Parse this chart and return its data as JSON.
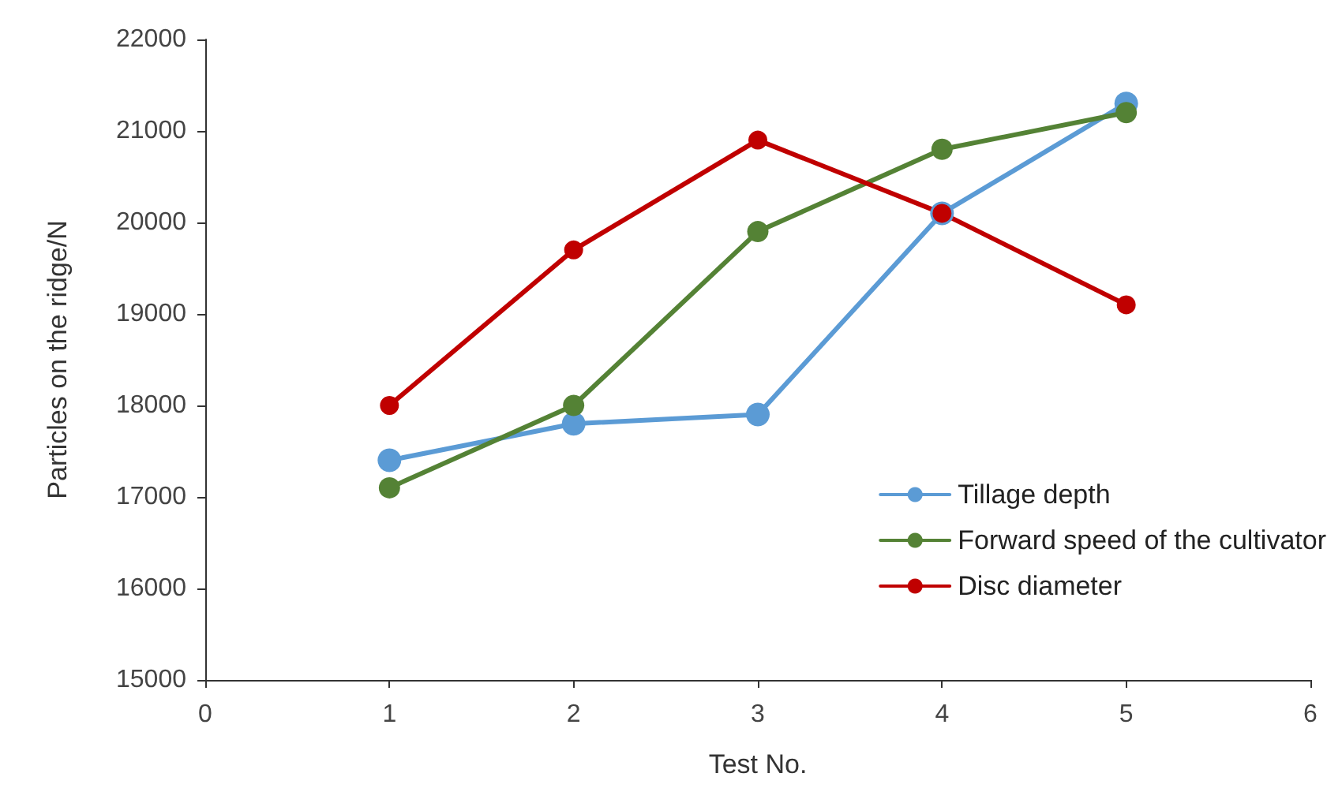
{
  "chart_data": {
    "type": "line",
    "xlabel": "Test No.",
    "ylabel": "Particles on the ridge/N",
    "x": [
      1,
      2,
      3,
      4,
      5
    ],
    "series": [
      {
        "name": "Tillage depth",
        "color": "#5b9bd5",
        "values": [
          17400,
          17800,
          17900,
          20100,
          21300
        ]
      },
      {
        "name": "Forward speed of the cultivator",
        "color": "#548235",
        "values": [
          17100,
          18000,
          19900,
          20800,
          21200
        ]
      },
      {
        "name": "Disc diameter",
        "color": "#c00000",
        "values": [
          18000,
          19700,
          20900,
          20100,
          19100
        ]
      }
    ],
    "xlim": [
      0,
      6
    ],
    "xticks": [
      0,
      1,
      2,
      3,
      4,
      5,
      6
    ],
    "ylim": [
      15000,
      22000
    ],
    "yticks": [
      15000,
      16000,
      17000,
      18000,
      19000,
      20000,
      21000,
      22000
    ],
    "grid": false,
    "legend": "bottom right",
    "marker": "circle",
    "line_style": "solid"
  }
}
